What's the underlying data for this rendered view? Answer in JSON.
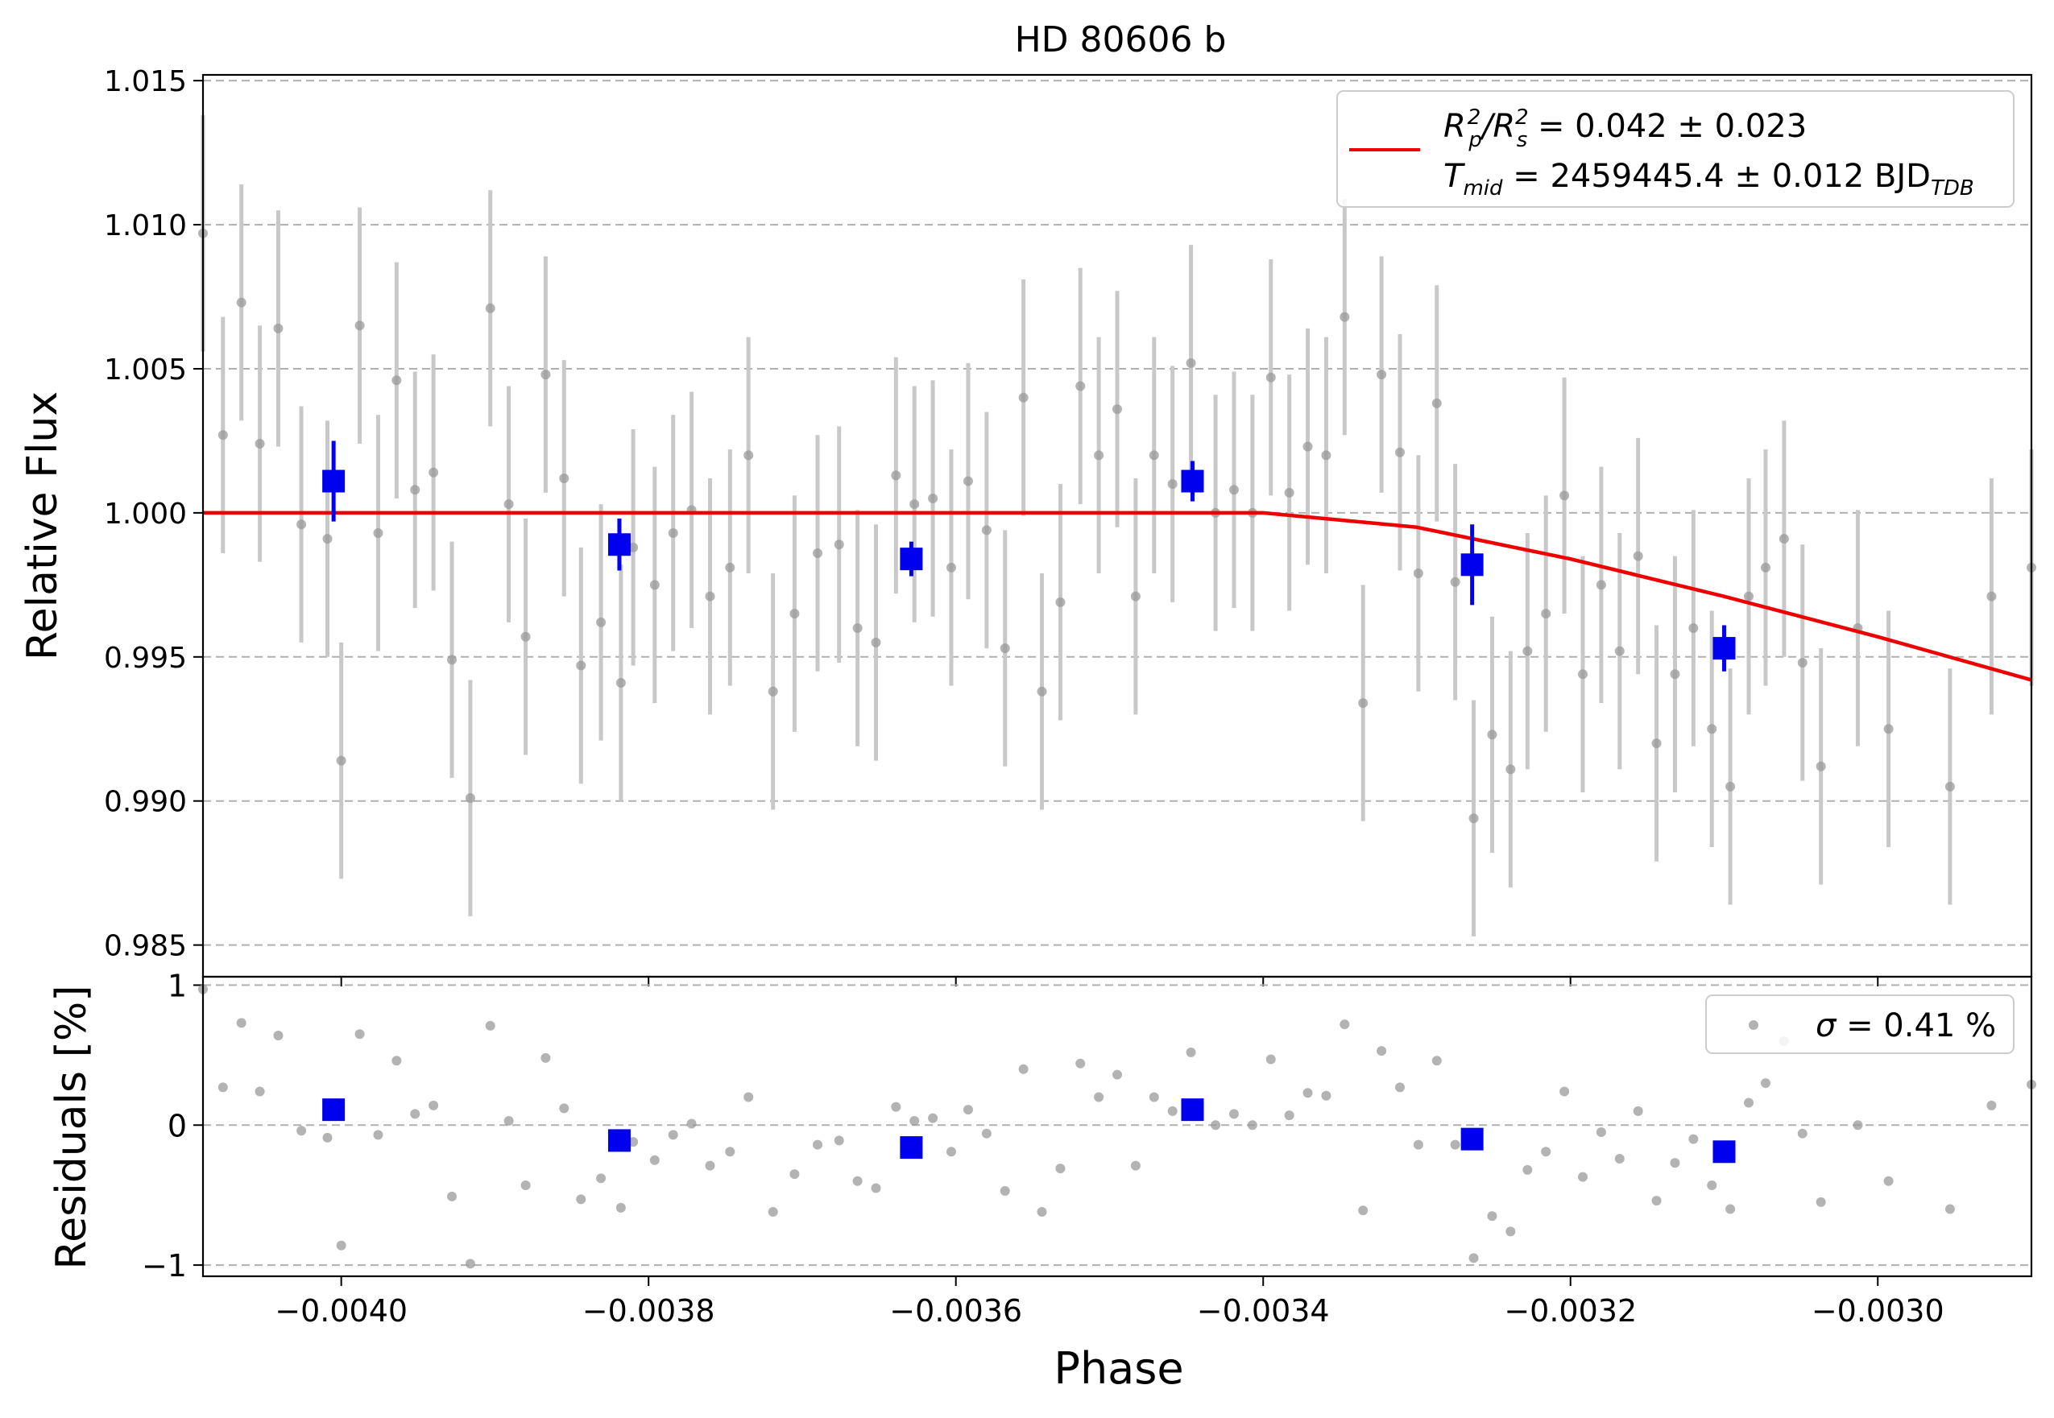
{
  "chart_data": [
    {
      "panel": "main",
      "type": "scatter",
      "title": "HD 80606 b",
      "xlabel": "",
      "ylabel": "Relative Flux",
      "xlim": [
        -0.00409,
        -0.0029
      ],
      "ylim": [
        0.9839,
        1.0152
      ],
      "grid": "horizontal dashed",
      "yticks": [
        0.985,
        0.99,
        0.995,
        1.0,
        1.005,
        1.01,
        1.015
      ],
      "ytick_labels": [
        "0.985",
        "0.990",
        "0.995",
        "1.000",
        "1.005",
        "1.010",
        "1.015"
      ],
      "legend": {
        "placement": "top-right",
        "entries": [
          {
            "label_line1": "R_p^2/R_s^2 = 0.042 ± 0.023",
            "label_line2": "T_mid = 2459445.4 ± 0.012 BJD_TDB",
            "color": "#ee0000"
          }
        ]
      },
      "series": [
        {
          "name": "unbinned data",
          "color": "#999999",
          "errcolor": "#c8c8c8",
          "x": [
            -0.00409,
            -0.004077,
            -0.004065,
            -0.004053,
            -0.004041,
            -0.004026,
            -0.004009,
            -0.004,
            -0.003988,
            -0.003976,
            -0.003964,
            -0.003952,
            -0.00394,
            -0.003928,
            -0.003916,
            -0.003903,
            -0.003891,
            -0.00388,
            -0.003867,
            -0.003855,
            -0.003844,
            -0.003831,
            -0.003818,
            -0.00381,
            -0.003796,
            -0.003784,
            -0.003772,
            -0.00376,
            -0.003747,
            -0.003735,
            -0.003719,
            -0.003705,
            -0.00369,
            -0.003676,
            -0.003664,
            -0.003652,
            -0.003639,
            -0.003627,
            -0.003615,
            -0.003603,
            -0.003592,
            -0.00358,
            -0.003568,
            -0.003556,
            -0.003544,
            -0.003532,
            -0.003519,
            -0.003507,
            -0.003495,
            -0.003483,
            -0.003471,
            -0.003459,
            -0.003447,
            -0.003431,
            -0.003419,
            -0.003407,
            -0.003395,
            -0.003383,
            -0.003371,
            -0.003359,
            -0.003347,
            -0.003335,
            -0.003323,
            -0.003311,
            -0.003299,
            -0.003287,
            -0.003275,
            -0.003263,
            -0.003251,
            -0.003239,
            -0.003228,
            -0.003216,
            -0.003204,
            -0.003192,
            -0.00318,
            -0.003168,
            -0.003156,
            -0.003144,
            -0.003132,
            -0.00312,
            -0.003108,
            -0.003096,
            -0.003084,
            -0.003073,
            -0.003061,
            -0.003049,
            -0.003037,
            -0.003013,
            -0.002993,
            -0.002953,
            -0.002926,
            -0.0029
          ],
          "y": [
            1.0097,
            1.0027,
            1.0073,
            1.0024,
            1.0064,
            0.9996,
            0.9991,
            0.9914,
            1.0065,
            0.9993,
            1.0046,
            1.0008,
            1.0014,
            0.9949,
            0.9901,
            1.0071,
            1.0003,
            0.9957,
            1.0048,
            1.0012,
            0.9947,
            0.9962,
            0.9941,
            0.9988,
            0.9975,
            0.9993,
            1.0001,
            0.9971,
            0.9981,
            1.002,
            0.9938,
            0.9965,
            0.9986,
            0.9989,
            0.996,
            0.9955,
            1.0013,
            1.0003,
            1.0005,
            0.9981,
            1.0011,
            0.9994,
            0.9953,
            1.004,
            0.9938,
            0.9969,
            1.0044,
            1.002,
            1.0036,
            0.9971,
            1.002,
            1.001,
            1.0052,
            1.0,
            1.0008,
            1.0,
            1.0047,
            1.0007,
            1.0023,
            1.002,
            1.0068,
            0.9934,
            1.0048,
            1.0021,
            0.9979,
            1.0038,
            0.9976,
            0.9894,
            0.9923,
            0.9911,
            0.9952,
            0.9965,
            1.0006,
            0.9944,
            0.9975,
            0.9952,
            0.9985,
            0.992,
            0.9944,
            0.996,
            0.9925,
            0.9905,
            0.9971,
            0.9981,
            0.9991,
            0.9948,
            0.9912,
            0.996,
            0.9925,
            0.9905,
            0.9971,
            0.9981
          ],
          "yerr": [
            0.0041,
            0.0041,
            0.0041,
            0.0041,
            0.0041,
            0.0041,
            0.0041,
            0.0041,
            0.0041,
            0.0041,
            0.0041,
            0.0041,
            0.0041,
            0.0041,
            0.0041,
            0.0041,
            0.0041,
            0.0041,
            0.0041,
            0.0041,
            0.0041,
            0.0041,
            0.0041,
            0.0041,
            0.0041,
            0.0041,
            0.0041,
            0.0041,
            0.0041,
            0.0041,
            0.0041,
            0.0041,
            0.0041,
            0.0041,
            0.0041,
            0.0041,
            0.0041,
            0.0041,
            0.0041,
            0.0041,
            0.0041,
            0.0041,
            0.0041,
            0.0041,
            0.0041,
            0.0041,
            0.0041,
            0.0041,
            0.0041,
            0.0041,
            0.0041,
            0.0041,
            0.0041,
            0.0041,
            0.0041,
            0.0041,
            0.0041,
            0.0041,
            0.0041,
            0.0041,
            0.0041,
            0.0041,
            0.0041,
            0.0041,
            0.0041,
            0.0041,
            0.0041,
            0.0041,
            0.0041,
            0.0041,
            0.0041,
            0.0041,
            0.0041,
            0.0041,
            0.0041,
            0.0041,
            0.0041,
            0.0041,
            0.0041,
            0.0041,
            0.0041,
            0.0041,
            0.0041,
            0.0041,
            0.0041,
            0.0041,
            0.0041,
            0.0041,
            0.0041,
            0.0041,
            0.0041,
            0.0041
          ]
        },
        {
          "name": "binned data",
          "color": "#0000ee",
          "x": [
            -0.004005,
            -0.003819,
            -0.003629,
            -0.003446,
            -0.003264,
            -0.0031
          ],
          "y": [
            1.0011,
            0.9989,
            0.9984,
            1.0011,
            0.9982,
            0.9953
          ],
          "yerr": [
            0.0014,
            0.0009,
            0.0006,
            0.0007,
            0.0014,
            0.0008
          ]
        },
        {
          "name": "transit model",
          "type": "line",
          "color": "#ee0000",
          "x": [
            -0.00409,
            -0.0034,
            -0.0033,
            -0.0032,
            -0.0031,
            -0.003,
            -0.0029
          ],
          "y": [
            1.0,
            1.0,
            0.9995,
            0.9984,
            0.9971,
            0.9957,
            0.9942
          ]
        }
      ]
    },
    {
      "panel": "residuals",
      "type": "scatter",
      "xlabel": "Phase",
      "ylabel": "Residuals [%]",
      "xlim": [
        -0.00409,
        -0.0029
      ],
      "ylim": [
        -1.08,
        1.06
      ],
      "yticks": [
        -1,
        0,
        1
      ],
      "ytick_labels": [
        "−1",
        "0",
        "1"
      ],
      "xticks": [
        -0.004,
        -0.0038,
        -0.0036,
        -0.0034,
        -0.0032,
        -0.003
      ],
      "xtick_labels": [
        "−0.0040",
        "−0.0038",
        "−0.0036",
        "−0.0034",
        "−0.0032",
        "−0.0030"
      ],
      "legend": {
        "placement": "top-right",
        "entries": [
          {
            "label": "σ = 0.41 %",
            "color": "#999999"
          }
        ]
      },
      "series": [
        {
          "name": "residuals",
          "color": "#999999",
          "x": [
            -0.00409,
            -0.004077,
            -0.004065,
            -0.004053,
            -0.004041,
            -0.004026,
            -0.004009,
            -0.004,
            -0.003988,
            -0.003976,
            -0.003964,
            -0.003952,
            -0.00394,
            -0.003928,
            -0.003916,
            -0.003903,
            -0.003891,
            -0.00388,
            -0.003867,
            -0.003855,
            -0.003844,
            -0.003831,
            -0.003818,
            -0.00381,
            -0.003796,
            -0.003784,
            -0.003772,
            -0.00376,
            -0.003747,
            -0.003735,
            -0.003719,
            -0.003705,
            -0.00369,
            -0.003676,
            -0.003664,
            -0.003652,
            -0.003639,
            -0.003627,
            -0.003615,
            -0.003603,
            -0.003592,
            -0.00358,
            -0.003568,
            -0.003556,
            -0.003544,
            -0.003532,
            -0.003519,
            -0.003507,
            -0.003495,
            -0.003483,
            -0.003471,
            -0.003459,
            -0.003447,
            -0.003431,
            -0.003419,
            -0.003407,
            -0.003395,
            -0.003383,
            -0.003371,
            -0.003359,
            -0.003347,
            -0.003335,
            -0.003323,
            -0.003311,
            -0.003299,
            -0.003287,
            -0.003275,
            -0.003263,
            -0.003251,
            -0.003239,
            -0.003228,
            -0.003216,
            -0.003204,
            -0.003192,
            -0.00318,
            -0.003168,
            -0.003156,
            -0.003144,
            -0.003132,
            -0.00312,
            -0.003108,
            -0.003096,
            -0.003084,
            -0.003073,
            -0.003061,
            -0.003049,
            -0.003037,
            -0.003013,
            -0.002993,
            -0.002953,
            -0.002926,
            -0.0029
          ],
          "y": [
            0.97,
            0.27,
            0.73,
            0.24,
            0.64,
            -0.04,
            -0.09,
            -0.86,
            0.65,
            -0.07,
            0.46,
            0.08,
            0.14,
            -0.51,
            -0.99,
            0.71,
            0.03,
            -0.43,
            0.48,
            0.12,
            -0.53,
            -0.38,
            -0.59,
            -0.12,
            -0.25,
            -0.07,
            0.01,
            -0.29,
            -0.19,
            0.2,
            -0.62,
            -0.35,
            -0.14,
            -0.11,
            -0.4,
            -0.45,
            0.13,
            0.03,
            0.05,
            -0.19,
            0.11,
            -0.06,
            -0.47,
            0.4,
            -0.62,
            -0.31,
            0.44,
            0.2,
            0.36,
            -0.29,
            0.2,
            0.1,
            0.52,
            0.0,
            0.08,
            0.0,
            0.47,
            0.07,
            0.23,
            0.21,
            0.72,
            -0.61,
            0.53,
            0.27,
            -0.14,
            0.46,
            -0.14,
            -0.95,
            -0.65,
            -0.76,
            -0.32,
            -0.19,
            0.24,
            -0.37,
            -0.05,
            -0.24,
            0.1,
            -0.54,
            -0.27,
            -0.1,
            -0.43,
            -0.6,
            0.16,
            0.3,
            0.6,
            -0.06,
            -0.55,
            0.0,
            -0.4,
            -0.6,
            0.14,
            0.29
          ]
        },
        {
          "name": "binned residuals",
          "color": "#0000ee",
          "x": [
            -0.004005,
            -0.003819,
            -0.003629,
            -0.003446,
            -0.003264,
            -0.0031
          ],
          "y": [
            0.11,
            -0.11,
            -0.16,
            0.11,
            -0.1,
            -0.19
          ]
        }
      ]
    }
  ],
  "main_yticks": [
    "0.985",
    "0.990",
    "0.995",
    "1.000",
    "1.005",
    "1.010",
    "1.015"
  ],
  "title": "HD 80606 b",
  "ylabel_main": "Relative Flux",
  "ylabel_res": "Residuals [%]",
  "xlabel": "Phase",
  "legend_main": {
    "l1_r": "R",
    "l1_sub_p": "p",
    "l1_sup2a": "2",
    "l1_slash": "/R",
    "l1_sub_s": "s",
    "l1_sup2b": "2",
    "l1_value": " = 0.042 ± 0.023",
    "l2_t": "T",
    "l2_sub_mid": "mid",
    "l2_value": " = 2459445.4 ± 0.012 BJD",
    "l2_sub_tdb": "TDB"
  },
  "legend_res": {
    "sigma": "σ",
    "value": " = 0.41 %"
  }
}
